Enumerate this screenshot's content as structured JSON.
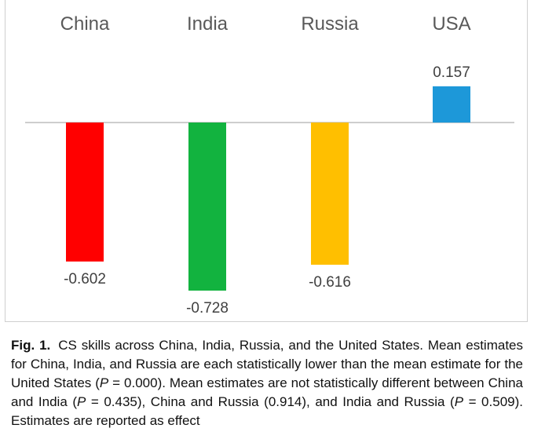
{
  "chart_data": {
    "type": "bar",
    "categories": [
      "China",
      "India",
      "Russia",
      "USA"
    ],
    "values": [
      -0.602,
      -0.728,
      -0.616,
      0.157
    ],
    "value_labels": [
      "-0.602",
      "-0.728",
      "-0.616",
      "0.157"
    ],
    "colors": [
      "#ff0000",
      "#12b33f",
      "#ffbf00",
      "#1d98d9"
    ],
    "ylim": [
      -0.728,
      0.157
    ],
    "grid": false,
    "category_labels_position": "top"
  },
  "caption": {
    "label": "Fig. 1.",
    "text_1": "CS skills across China, India, Russia, and the United States. Mean estimates for China, India, and Russia are each statistically lower than the mean estimate for the United States (",
    "p_1": "P",
    "text_2": " = 0.000). Mean estimates are not statistically different between China and India (",
    "p_2": "P",
    "text_3": " = 0.435), China and Russia (0.914), and India and Russia (",
    "p_3": "P",
    "text_4": " = 0.509). Estimates are reported as effect"
  }
}
